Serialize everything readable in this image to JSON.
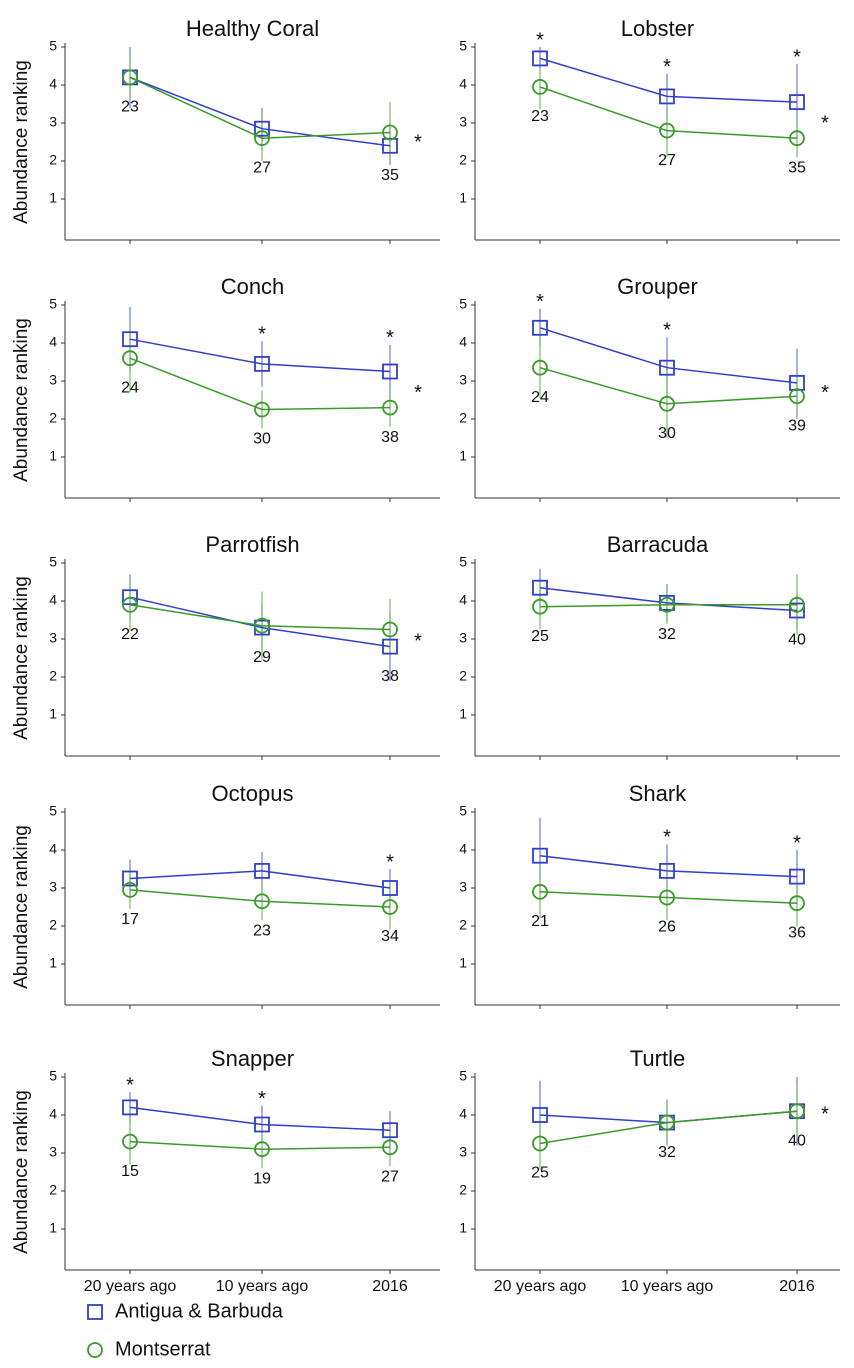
{
  "legend": [
    {
      "name": "Antigua & Barbuda",
      "color": "#2f3fc8",
      "marker": "square"
    },
    {
      "name": "Montserrat",
      "color": "#3a9a2a",
      "marker": "circle"
    }
  ],
  "chart_data": [
    {
      "type": "line",
      "title": "Healthy Coral",
      "ylabel": "Abundance ranking",
      "categories": [
        null,
        null,
        null
      ],
      "ylim": [
        0,
        5
      ],
      "yticks": [
        1,
        2,
        3,
        4,
        5
      ],
      "sample_sizes": [
        23,
        27,
        35
      ],
      "category_marks": [
        null,
        null,
        null
      ],
      "trend_mark": "*",
      "series": [
        {
          "values": [
            4.2,
            2.85,
            2.4
          ],
          "errors": [
            0.8,
            0.55,
            0.5
          ]
        },
        {
          "values": [
            4.2,
            2.6,
            2.75
          ],
          "errors": [
            0.6,
            0.6,
            0.8
          ]
        }
      ]
    },
    {
      "type": "line",
      "title": "Lobster",
      "categories": [
        null,
        null,
        null
      ],
      "ylim": [
        0,
        5
      ],
      "yticks": [
        1,
        2,
        3,
        4,
        5
      ],
      "sample_sizes": [
        23,
        27,
        35
      ],
      "category_marks": [
        "*",
        "*",
        "*"
      ],
      "trend_mark": "*",
      "series": [
        {
          "values": [
            4.7,
            3.7,
            3.55
          ],
          "errors": [
            0.3,
            0.6,
            1.0
          ]
        },
        {
          "values": [
            3.95,
            2.8,
            2.6
          ],
          "errors": [
            0.6,
            0.7,
            0.5
          ]
        }
      ]
    },
    {
      "type": "line",
      "title": "Conch",
      "ylabel": "Abundance ranking",
      "categories": [
        null,
        null,
        null
      ],
      "ylim": [
        0,
        5
      ],
      "yticks": [
        1,
        2,
        3,
        4,
        5
      ],
      "sample_sizes": [
        24,
        30,
        38
      ],
      "category_marks": [
        null,
        "*",
        "*"
      ],
      "trend_mark": "*",
      "series": [
        {
          "values": [
            4.1,
            3.45,
            3.25
          ],
          "errors": [
            0.85,
            0.6,
            0.7
          ]
        },
        {
          "values": [
            3.6,
            2.25,
            2.3
          ],
          "errors": [
            0.9,
            0.5,
            0.5
          ]
        }
      ]
    },
    {
      "type": "line",
      "title": "Grouper",
      "categories": [
        null,
        null,
        null
      ],
      "ylim": [
        0,
        5
      ],
      "yticks": [
        1,
        2,
        3,
        4,
        5
      ],
      "sample_sizes": [
        24,
        30,
        39
      ],
      "category_marks": [
        "*",
        "*",
        null
      ],
      "trend_mark": "*",
      "series": [
        {
          "values": [
            4.4,
            3.35,
            2.95
          ],
          "errors": [
            0.5,
            0.8,
            0.9
          ]
        },
        {
          "values": [
            3.35,
            2.4,
            2.6
          ],
          "errors": [
            0.8,
            0.9,
            0.6
          ]
        }
      ]
    },
    {
      "type": "line",
      "title": "Parrotfish",
      "ylabel": "Abundance ranking",
      "categories": [
        null,
        null,
        null
      ],
      "ylim": [
        0,
        5
      ],
      "yticks": [
        1,
        2,
        3,
        4,
        5
      ],
      "sample_sizes": [
        22,
        29,
        38
      ],
      "category_marks": [
        null,
        null,
        null
      ],
      "trend_mark": "*",
      "series": [
        {
          "values": [
            4.1,
            3.3,
            2.8
          ],
          "errors": [
            0.6,
            0.6,
            0.9
          ]
        },
        {
          "values": [
            3.9,
            3.35,
            3.25
          ],
          "errors": [
            0.7,
            0.9,
            0.8
          ]
        }
      ]
    },
    {
      "type": "line",
      "title": "Barracuda",
      "categories": [
        null,
        null,
        null
      ],
      "ylim": [
        0,
        5
      ],
      "yticks": [
        1,
        2,
        3,
        4,
        5
      ],
      "sample_sizes": [
        25,
        32,
        40
      ],
      "category_marks": [
        null,
        null,
        null
      ],
      "trend_mark": null,
      "series": [
        {
          "values": [
            4.35,
            3.95,
            3.75
          ],
          "errors": [
            0.5,
            0.5,
            0.5
          ]
        },
        {
          "values": [
            3.85,
            3.9,
            3.9
          ],
          "errors": [
            0.6,
            0.5,
            0.8
          ]
        }
      ]
    },
    {
      "type": "line",
      "title": "Octopus",
      "ylabel": "Abundance ranking",
      "categories": [
        null,
        null,
        null
      ],
      "ylim": [
        0,
        5
      ],
      "yticks": [
        1,
        2,
        3,
        4,
        5
      ],
      "sample_sizes": [
        17,
        23,
        34
      ],
      "category_marks": [
        null,
        null,
        "*"
      ],
      "trend_mark": null,
      "series": [
        {
          "values": [
            3.25,
            3.45,
            3.0
          ],
          "errors": [
            0.5,
            0.5,
            0.5
          ]
        },
        {
          "values": [
            2.95,
            2.65,
            2.5
          ],
          "errors": [
            0.5,
            0.5,
            0.6
          ]
        }
      ]
    },
    {
      "type": "line",
      "title": "Shark",
      "categories": [
        null,
        null,
        null
      ],
      "ylim": [
        0,
        5
      ],
      "yticks": [
        1,
        2,
        3,
        4,
        5
      ],
      "sample_sizes": [
        21,
        26,
        36
      ],
      "category_marks": [
        null,
        "*",
        "*"
      ],
      "trend_mark": null,
      "series": [
        {
          "values": [
            3.85,
            3.45,
            3.3
          ],
          "errors": [
            1.0,
            0.7,
            0.7
          ]
        },
        {
          "values": [
            2.9,
            2.75,
            2.6
          ],
          "errors": [
            0.7,
            0.6,
            0.6
          ]
        }
      ]
    },
    {
      "type": "line",
      "title": "Snapper",
      "ylabel": "Abundance ranking",
      "categories": [
        "20 years ago",
        "10 years ago",
        "2016"
      ],
      "ylim": [
        0,
        5
      ],
      "yticks": [
        1,
        2,
        3,
        4,
        5
      ],
      "sample_sizes": [
        15,
        19,
        27
      ],
      "category_marks": [
        "*",
        "*",
        null
      ],
      "trend_mark": null,
      "series": [
        {
          "values": [
            4.2,
            3.75,
            3.6
          ],
          "errors": [
            0.4,
            0.5,
            0.5
          ]
        },
        {
          "values": [
            3.3,
            3.1,
            3.15
          ],
          "errors": [
            0.6,
            0.5,
            0.5
          ]
        }
      ]
    },
    {
      "type": "line",
      "title": "Turtle",
      "categories": [
        "20 years ago",
        "10 years ago",
        "2016"
      ],
      "ylim": [
        0,
        5
      ],
      "yticks": [
        1,
        2,
        3,
        4,
        5
      ],
      "sample_sizes": [
        25,
        32,
        40
      ],
      "category_marks": [
        null,
        null,
        null
      ],
      "trend_mark": "*",
      "series": [
        {
          "values": [
            4.0,
            3.8,
            4.1
          ],
          "errors": [
            0.9,
            0.6,
            0.9
          ]
        },
        {
          "values": [
            3.25,
            3.8,
            4.1
          ],
          "errors": [
            0.7,
            0.6,
            0.7
          ]
        }
      ]
    }
  ]
}
